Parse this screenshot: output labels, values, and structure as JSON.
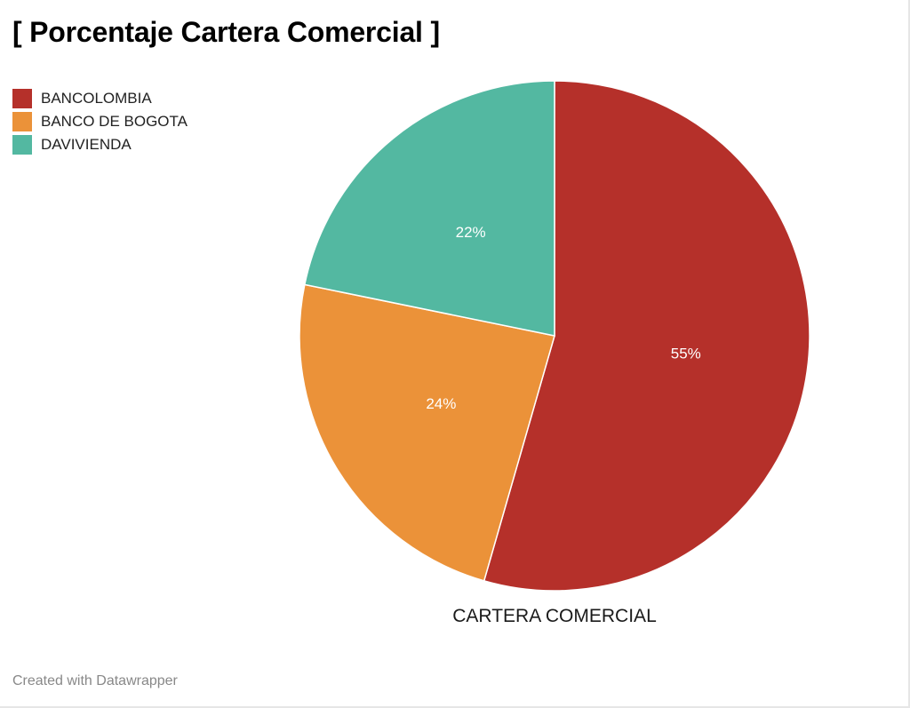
{
  "chart_data": {
    "type": "pie",
    "title": "[ Porcentaje Cartera Comercial ]",
    "pie_label": "CARTERA COMERCIAL",
    "legend_position": "top-left",
    "categories": [
      "BANCOLOMBIA",
      "BANCO DE BOGOTA",
      "DAVIVIENDA"
    ],
    "values": [
      55,
      24,
      22
    ],
    "value_labels": [
      "55%",
      "24%",
      "22%"
    ],
    "colors": [
      "#b5302a",
      "#eb9239",
      "#53b8a1"
    ]
  },
  "footer": {
    "credit": "Created with Datawrapper"
  }
}
